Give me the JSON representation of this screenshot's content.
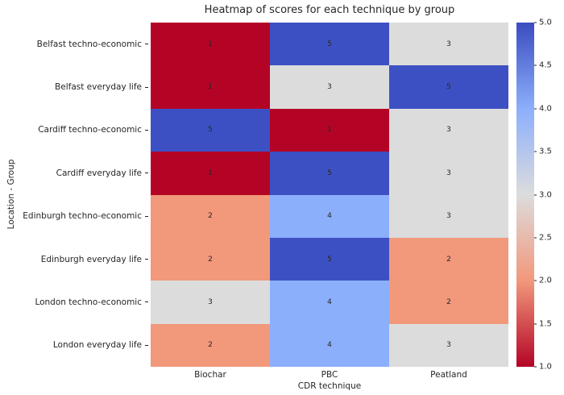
{
  "chart_data": {
    "type": "heatmap",
    "title": "Heatmap of scores for each technique by group",
    "xlabel": "CDR technique",
    "ylabel": "Location - Group",
    "columns": [
      "Biochar",
      "PBC",
      "Peatland"
    ],
    "rows": [
      "Belfast techno-economic",
      "Belfast everyday life",
      "Cardiff techno-economic",
      "Cardiff everyday life",
      "Edinburgh techno-economic",
      "Edinburgh everyday life",
      "London techno-economic",
      "London everyday life"
    ],
    "values": [
      [
        1,
        5,
        3
      ],
      [
        1,
        3,
        5
      ],
      [
        5,
        1,
        3
      ],
      [
        1,
        5,
        3
      ],
      [
        2,
        4,
        3
      ],
      [
        2,
        5,
        2
      ],
      [
        3,
        4,
        2
      ],
      [
        2,
        4,
        3
      ]
    ],
    "colormap": {
      "1": "#b40426",
      "2": "#f2987b",
      "3": "#dcdcdc",
      "4": "#8caffc",
      "5": "#3d50c3"
    },
    "colorbar": {
      "min": 1.0,
      "max": 5.0,
      "ticks": [
        "5.0",
        "4.5",
        "4.0",
        "3.5",
        "3.0",
        "2.5",
        "2.0",
        "1.5",
        "1.0"
      ],
      "gradient": [
        "#3b4cc0",
        "#8caffc",
        "#dcdcdc",
        "#f2987b",
        "#b40426"
      ]
    },
    "legend_position": "right-colorbar",
    "grid": false
  }
}
